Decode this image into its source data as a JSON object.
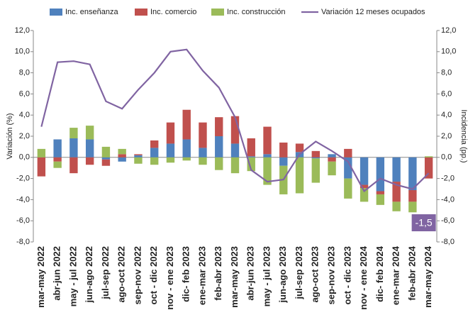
{
  "chart_data": {
    "type": "bar",
    "categories": [
      "mar-may 2022",
      "abr-jun 2022",
      "may - jul 2022",
      "jun-ago 2022",
      "jul-sep 2022",
      "ago-oct 2022",
      "sep-nov 2022",
      "oct - dic 2022",
      "nov - ene 2023",
      "dic- feb 2023",
      "ene-mar 2023",
      "feb-abr 2023",
      "mar-may 2023",
      "abr-jun 2023",
      "may - jul 2023",
      "jun-ago 2023",
      "jul-sep 2023",
      "ago-oct 2023",
      "sep-nov 2023",
      "oct - dic 2023",
      "nov - ene 2024",
      "dic- feb 2024",
      "ene-mar 2024",
      "feb-abr 2024",
      "mar-may 2024"
    ],
    "series": [
      {
        "name": "Inc. enseñanza",
        "color": "#4f81bd",
        "type": "bar",
        "values": [
          0,
          1.7,
          1.8,
          1.7,
          -0.2,
          -0.4,
          0.2,
          0.9,
          1.3,
          1.7,
          0.9,
          2.0,
          1.3,
          0.1,
          0.3,
          -0.8,
          0.5,
          -0.1,
          0.3,
          -2.0,
          -2.6,
          -3.2,
          -2.3,
          -3.1,
          0
        ]
      },
      {
        "name": "Inc. comercio",
        "color": "#c0504d",
        "type": "bar",
        "values": [
          -1.8,
          -0.4,
          -1.5,
          -0.7,
          -0.6,
          0.3,
          0.1,
          0.7,
          2.0,
          2.8,
          2.4,
          1.8,
          2.6,
          1.7,
          2.6,
          1.4,
          0.8,
          0.6,
          -0.4,
          0.8,
          -0.3,
          -0.3,
          -1.9,
          -1.1,
          -2.0
        ]
      },
      {
        "name": "Inc. construcción",
        "color": "#9bbb59",
        "type": "bar",
        "values": [
          0.8,
          -0.6,
          1.0,
          1.3,
          1.0,
          0.5,
          -0.6,
          -0.7,
          -0.5,
          -0.3,
          -0.7,
          -1.2,
          -1.5,
          -1.3,
          -2.6,
          -2.7,
          -3.4,
          -2.3,
          -1.3,
          -1.9,
          -1.3,
          -1.0,
          -0.9,
          -1.0,
          0.1
        ]
      },
      {
        "name": "Variación 12 meses ocupados",
        "color": "#8064a2",
        "type": "line",
        "axis": "y2",
        "values": [
          2.9,
          9.0,
          9.1,
          8.8,
          5.3,
          4.6,
          6.4,
          8.0,
          10.0,
          10.2,
          8.2,
          6.6,
          3.8,
          -1.2,
          -2.3,
          -2.1,
          0.3,
          1.5,
          0.6,
          -0.4,
          -3.2,
          -2.0,
          -2.6,
          -3.0,
          -1.5
        ]
      }
    ],
    "y_label": "Variación (%)",
    "y2_label": "Incidencia (pp.)",
    "annotation": "-1,5",
    "ylim": [
      -8,
      12
    ],
    "yticks": [
      {
        "value": -8,
        "label": "-8,0"
      },
      {
        "value": -6,
        "label": "-6,0"
      },
      {
        "value": -4,
        "label": "-4,0"
      },
      {
        "value": -2,
        "label": "-2,0"
      },
      {
        "value": 0,
        "label": "0,0"
      },
      {
        "value": 2,
        "label": "2,0"
      },
      {
        "value": 4,
        "label": "4,0"
      },
      {
        "value": 6,
        "label": "6,0"
      },
      {
        "value": 8,
        "label": "8,0"
      },
      {
        "value": 10,
        "label": "10,0"
      },
      {
        "value": 12,
        "label": "12,0"
      }
    ],
    "y2lim": [
      -8,
      12
    ],
    "y2ticks": [
      {
        "value": -8,
        "label": "-8,0"
      },
      {
        "value": -6,
        "label": "-6,0"
      },
      {
        "value": -4,
        "label": "-4,0"
      },
      {
        "value": -2,
        "label": "-2,0"
      },
      {
        "value": 0,
        "label": "0,0"
      },
      {
        "value": 2,
        "label": "2,0"
      },
      {
        "value": 4,
        "label": "4,0"
      },
      {
        "value": 6,
        "label": "6,0"
      },
      {
        "value": 8,
        "label": "8,0"
      },
      {
        "value": 10,
        "label": "10,0"
      },
      {
        "value": 12,
        "label": "12,0"
      }
    ],
    "grid": false,
    "legend": "top"
  }
}
